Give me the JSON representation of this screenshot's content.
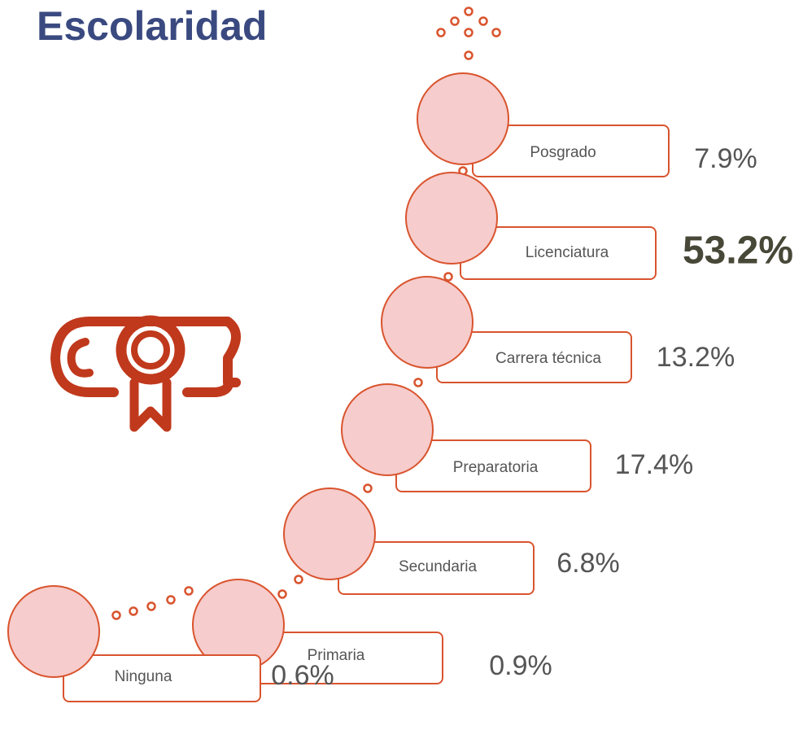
{
  "title": "Escolaridad",
  "levels": [
    {
      "label": "Posgrado",
      "value": "7.9%"
    },
    {
      "label": "Licenciatura",
      "value": "53.2%"
    },
    {
      "label": "Carrera técnica",
      "value": "13.2%"
    },
    {
      "label": "Preparatoria",
      "value": "17.4%"
    },
    {
      "label": "Secundaria",
      "value": "6.8%"
    },
    {
      "label": "Primaria",
      "value": "0.9%"
    },
    {
      "label": "Ninguna",
      "value": "0.6%"
    }
  ]
}
